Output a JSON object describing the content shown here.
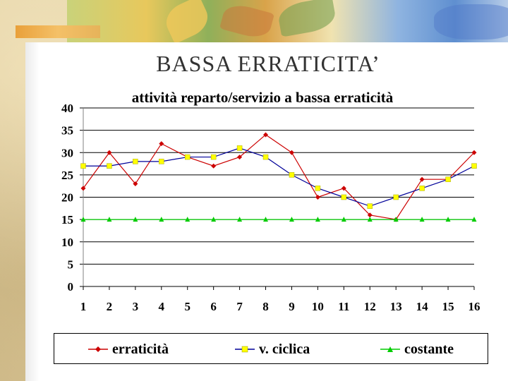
{
  "slide": {
    "title": "BASSA ERRATICITA’"
  },
  "colors": {
    "series_erraticita": "#cc0000",
    "series_ciclica": "#000099",
    "series_ciclica_marker": "#ffff00",
    "series_costante": "#00cc00",
    "gridline": "#000000"
  },
  "chart_data": {
    "type": "line",
    "title": "attività reparto/servizio a bassa erraticità",
    "xlabel": "",
    "ylabel": "",
    "categories": [
      "1",
      "2",
      "3",
      "4",
      "5",
      "6",
      "7",
      "8",
      "9",
      "10",
      "11",
      "12",
      "13",
      "14",
      "15",
      "16"
    ],
    "yticks": [
      "0",
      "5",
      "10",
      "15",
      "20",
      "25",
      "30",
      "35",
      "40"
    ],
    "ylim": [
      0,
      40
    ],
    "grid": "horizontal",
    "legend_position": "bottom",
    "series": [
      {
        "name": "erraticità",
        "marker": "diamond",
        "values": [
          22,
          30,
          23,
          32,
          29,
          27,
          29,
          34,
          30,
          20,
          22,
          16,
          15,
          24,
          24,
          30
        ]
      },
      {
        "name": "v. ciclica",
        "marker": "square",
        "values": [
          27,
          27,
          28,
          28,
          29,
          29,
          31,
          29,
          25,
          22,
          20,
          18,
          20,
          22,
          24,
          27
        ]
      },
      {
        "name": "costante",
        "marker": "triangle",
        "values": [
          15,
          15,
          15,
          15,
          15,
          15,
          15,
          15,
          15,
          15,
          15,
          15,
          15,
          15,
          15,
          15
        ]
      }
    ]
  }
}
